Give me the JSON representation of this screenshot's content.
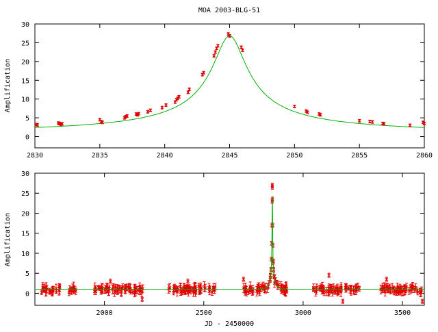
{
  "chart_data": [
    {
      "type": "scatter",
      "title": "MOA 2003-BLG-51",
      "xlabel": "",
      "ylabel": "Amplification",
      "xlim": [
        2830,
        2860
      ],
      "ylim": [
        -3,
        30
      ],
      "xticks": [
        2830,
        2835,
        2840,
        2845,
        2850,
        2855,
        2860
      ],
      "yticks": [
        0,
        5,
        10,
        15,
        20,
        25,
        30
      ],
      "grid": false,
      "colors": {
        "points": "#e00000",
        "model": "#00b000"
      },
      "model": {
        "t0": 2845.0,
        "u0": 0.0373,
        "tE": 34.0
      },
      "series": [
        {
          "type": "scatter",
          "x": [
            2830.1,
            2830.2,
            2831.8,
            2831.9,
            2832.0,
            2832.1,
            2835.0,
            2835.1,
            2835.2,
            2836.9,
            2837.0,
            2837.1,
            2837.8,
            2837.9,
            2838.0,
            2838.7,
            2838.9,
            2839.8,
            2840.1,
            2840.8,
            2840.9,
            2841.0,
            2841.1,
            2841.8,
            2841.9,
            2842.9,
            2843.0,
            2843.8,
            2843.9,
            2844.0,
            2844.1,
            2844.9,
            2845.0,
            2845.9,
            2846.0,
            2850.0,
            2850.9,
            2851.0,
            2851.9,
            2852.0,
            2855.0,
            2855.8,
            2856.0,
            2856.8,
            2856.9,
            2858.9,
            2859.9,
            2860.0
          ],
          "y": [
            3.2,
            3.1,
            3.6,
            3.5,
            3.3,
            3.4,
            4.5,
            4.0,
            3.8,
            5.0,
            5.3,
            5.5,
            6.0,
            5.8,
            6.1,
            6.6,
            7.0,
            7.7,
            8.4,
            9.2,
            9.8,
            10.2,
            10.6,
            11.8,
            12.6,
            16.5,
            17.0,
            21.5,
            22.5,
            23.5,
            24.2,
            27.3,
            26.8,
            23.8,
            23.0,
            8.0,
            6.8,
            6.5,
            6.0,
            5.8,
            4.2,
            4.0,
            3.9,
            3.5,
            3.4,
            3.0,
            3.8,
            3.5
          ]
        }
      ]
    },
    {
      "type": "scatter",
      "title": "",
      "xlabel": "JD - 2450000",
      "ylabel": "Amplification",
      "xlim": [
        1650,
        3610
      ],
      "ylim": [
        -3,
        30
      ],
      "xticks": [
        2000,
        2500,
        3000,
        3500
      ],
      "yticks": [
        0,
        5,
        10,
        15,
        20,
        25,
        30
      ],
      "grid": false,
      "colors": {
        "points": "#e00000",
        "model": "#00b000"
      },
      "model": {
        "t0": 2845.0,
        "u0": 0.0373,
        "tE": 34.0,
        "baseline": 1.0
      },
      "seasons": [
        [
          1680,
          1780
        ],
        [
          1820,
          1860
        ],
        [
          1950,
          2030
        ],
        [
          2040,
          2200
        ],
        [
          2320,
          2560
        ],
        [
          2700,
          2810
        ],
        [
          2810,
          2920
        ],
        [
          3050,
          3290
        ],
        [
          3390,
          3600
        ]
      ],
      "outliers": [
        {
          "x": 2030,
          "y": 3.0
        },
        {
          "x": 2190,
          "y": -1.5
        },
        {
          "x": 2420,
          "y": 3.0
        },
        {
          "x": 2700,
          "y": 3.5
        },
        {
          "x": 3130,
          "y": 4.5
        },
        {
          "x": 3200,
          "y": -2.0
        },
        {
          "x": 3420,
          "y": 3.5
        },
        {
          "x": 3600,
          "y": -2.0
        }
      ],
      "peak_points": {
        "x": [
          2835,
          2838,
          2840,
          2842,
          2843,
          2844,
          2845,
          2845,
          2846,
          2847,
          2848,
          2850,
          2852,
          2855,
          2860,
          2865
        ],
        "y": [
          4.5,
          6.0,
          8.5,
          12.5,
          17.0,
          23.0,
          27.0,
          26.5,
          23.5,
          17.0,
          12.0,
          8.0,
          6.0,
          4.2,
          3.4,
          2.6
        ]
      }
    }
  ]
}
